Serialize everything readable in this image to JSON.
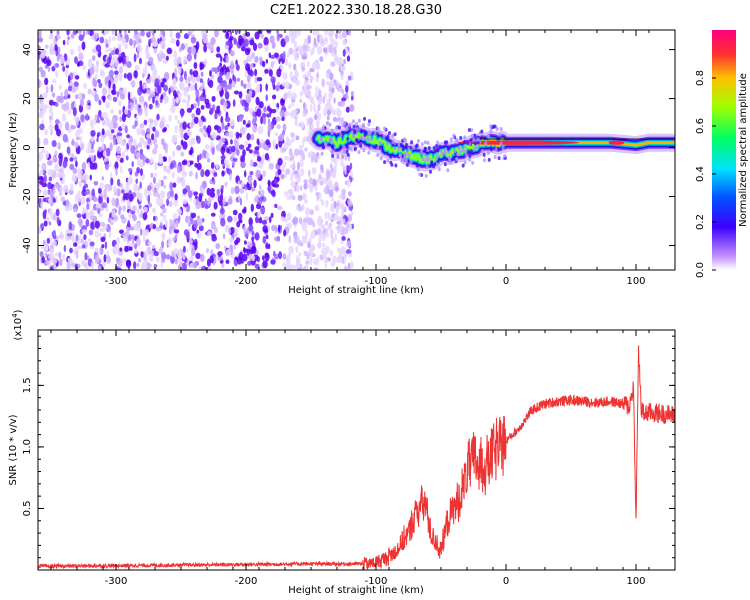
{
  "title": "C2E1.2022.330.18.28.G30",
  "chart_data": [
    {
      "type": "heatmap",
      "xlabel": "Height of straight line (km)",
      "ylabel": "Frequency (Hz)",
      "xlim": [
        -360,
        130
      ],
      "ylim": [
        -50,
        48
      ],
      "xticks": [
        -300,
        -200,
        -100,
        0,
        100
      ],
      "yticks": [
        -40,
        -20,
        0,
        20,
        40
      ],
      "noise_region_x": [
        -360,
        -118
      ],
      "signal_track": {
        "x": [
          -145,
          -130,
          -120,
          -110,
          -100,
          -90,
          -80,
          -70,
          -60,
          -50,
          -40,
          -30,
          -20,
          -10,
          0,
          20,
          40,
          60,
          80,
          100,
          110,
          130
        ],
        "y": [
          4,
          2,
          4,
          5,
          3,
          0,
          -2,
          -4,
          -5,
          -3,
          -2,
          0,
          1,
          2,
          2,
          2,
          2,
          2,
          2,
          1,
          2,
          2
        ]
      },
      "colorbar": {
        "label": "Normalized spectral amplitude",
        "range": [
          0,
          1
        ],
        "ticks": [
          "0.0",
          "0.2",
          "0.4",
          "0.6",
          "0.8"
        ]
      }
    },
    {
      "type": "line",
      "xlabel": "Height of straight line (km)",
      "ylabel": "SNR (10 * v/v)",
      "exponent_label": "(x10",
      "exponent_power": "4",
      "exponent_close": ")",
      "xlim": [
        -360,
        130
      ],
      "ylim": [
        0,
        1.95
      ],
      "xticks": [
        -300,
        -200,
        -100,
        0,
        100
      ],
      "yticks": [
        "0.5",
        "1.0",
        "1.5"
      ],
      "color": "#ee3333",
      "series": [
        {
          "x": [
            -360,
            -300,
            -250,
            -200,
            -150,
            -120,
            -105,
            -95,
            -85,
            -75,
            -68,
            -62,
            -58,
            -50,
            -45,
            -40,
            -35,
            -30,
            -25,
            -20,
            -15,
            -10,
            -5,
            0,
            10,
            20,
            30,
            40,
            50,
            60,
            70,
            80,
            90,
            95,
            98,
            100,
            102,
            104,
            106,
            110,
            120,
            130
          ],
          "values": [
            0.03,
            0.035,
            0.04,
            0.045,
            0.05,
            0.05,
            0.05,
            0.08,
            0.15,
            0.3,
            0.5,
            0.55,
            0.3,
            0.15,
            0.4,
            0.5,
            0.6,
            0.8,
            0.9,
            0.85,
            0.85,
            0.95,
            1.0,
            1.05,
            1.15,
            1.3,
            1.35,
            1.37,
            1.38,
            1.37,
            1.36,
            1.37,
            1.35,
            1.33,
            1.5,
            0.4,
            1.8,
            1.3,
            1.27,
            1.28,
            1.27,
            1.26
          ]
        }
      ]
    }
  ]
}
